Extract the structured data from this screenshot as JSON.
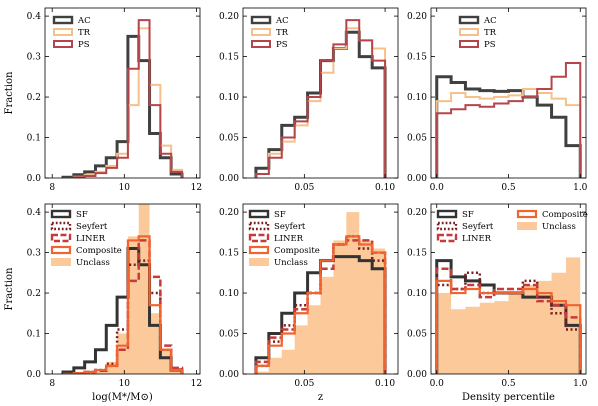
{
  "colors": {
    "AC": "#404040",
    "TR": "#f5c08a",
    "PS": "#b5454b",
    "SF": "#333333",
    "Seyfert": "#7a1f1f",
    "LINER": "#c63a3a",
    "Composite": "#f0642f",
    "Unclass": "#fbc99a"
  },
  "chart_data": [
    {
      "type": "step-histogram",
      "panel": "top-mass",
      "xlabel": "",
      "ylabel": "Fraction",
      "xlim": [
        7.8,
        12.1
      ],
      "ylim": [
        0,
        0.42
      ],
      "xticks": [
        8,
        10,
        12
      ],
      "yticks": [
        0.0,
        0.1,
        0.2,
        0.3,
        0.4
      ],
      "xticklabels": [
        "8",
        "10",
        "12"
      ],
      "yticklabels": [
        "0.0",
        "0.1",
        "0.2",
        "0.3",
        "0.4"
      ],
      "legend": "top-left",
      "series": [
        {
          "name": "AC",
          "key": "AC",
          "style": "solid",
          "width": 3,
          "edges": [
            8.3,
            8.6,
            8.9,
            9.2,
            9.5,
            9.8,
            10.1,
            10.4,
            10.7,
            11.0,
            11.3,
            11.6
          ],
          "values": [
            0.002,
            0.008,
            0.015,
            0.03,
            0.05,
            0.09,
            0.35,
            0.29,
            0.11,
            0.05,
            0.01
          ]
        },
        {
          "name": "TR",
          "key": "TR",
          "style": "solid",
          "width": 2,
          "edges": [
            8.3,
            8.6,
            8.9,
            9.2,
            9.5,
            9.8,
            10.1,
            10.4,
            10.7,
            11.0,
            11.3,
            11.6
          ],
          "values": [
            0.0,
            0.003,
            0.008,
            0.015,
            0.03,
            0.06,
            0.18,
            0.37,
            0.23,
            0.08,
            0.02
          ]
        },
        {
          "name": "PS",
          "key": "PS",
          "style": "solid",
          "width": 2,
          "edges": [
            8.3,
            8.6,
            8.9,
            9.2,
            9.5,
            9.8,
            10.1,
            10.4,
            10.7,
            11.0,
            11.3,
            11.6
          ],
          "values": [
            0.0,
            0.002,
            0.005,
            0.012,
            0.025,
            0.05,
            0.27,
            0.39,
            0.18,
            0.06,
            0.015
          ]
        }
      ]
    },
    {
      "type": "step-histogram",
      "panel": "top-z",
      "xlabel": "",
      "ylabel": "",
      "xlim": [
        0.012,
        0.108
      ],
      "ylim": [
        0,
        0.21
      ],
      "xticks": [
        0.05,
        0.1
      ],
      "yticks": [
        0.0,
        0.05,
        0.1,
        0.15,
        0.2
      ],
      "xticklabels": [
        "0.05",
        "0.10"
      ],
      "yticklabels": [
        "0.00",
        "0.05",
        "0.10",
        "0.15",
        "0.20"
      ],
      "legend": "top-left",
      "series": [
        {
          "name": "AC",
          "key": "AC",
          "style": "solid",
          "width": 3,
          "edges": [
            0.02,
            0.028,
            0.036,
            0.044,
            0.052,
            0.06,
            0.068,
            0.076,
            0.084,
            0.092,
            0.1
          ],
          "values": [
            0.012,
            0.035,
            0.065,
            0.075,
            0.105,
            0.145,
            0.16,
            0.18,
            0.15,
            0.136
          ]
        },
        {
          "name": "TR",
          "key": "TR",
          "style": "solid",
          "width": 2,
          "edges": [
            0.02,
            0.028,
            0.036,
            0.044,
            0.052,
            0.06,
            0.068,
            0.076,
            0.084,
            0.092,
            0.1
          ],
          "values": [
            0.005,
            0.03,
            0.045,
            0.065,
            0.095,
            0.13,
            0.16,
            0.185,
            0.17,
            0.16
          ]
        },
        {
          "name": "PS",
          "key": "PS",
          "style": "solid",
          "width": 2,
          "edges": [
            0.02,
            0.028,
            0.036,
            0.044,
            0.052,
            0.06,
            0.068,
            0.076,
            0.084,
            0.092,
            0.1
          ],
          "values": [
            0.005,
            0.025,
            0.05,
            0.07,
            0.1,
            0.145,
            0.165,
            0.195,
            0.17,
            0.145
          ]
        }
      ]
    },
    {
      "type": "step-histogram",
      "panel": "top-density",
      "xlabel": "",
      "ylabel": "",
      "xlim": [
        -0.04,
        1.04
      ],
      "ylim": [
        0,
        0.21
      ],
      "xticks": [
        0.0,
        0.5,
        1.0
      ],
      "yticks": [
        0.0,
        0.05,
        0.1,
        0.15,
        0.2
      ],
      "xticklabels": [
        "0.0",
        "0.5",
        "1.0"
      ],
      "yticklabels": [
        "0.00",
        "0.05",
        "0.10",
        "0.15",
        "0.20"
      ],
      "legend": "top-center",
      "series": [
        {
          "name": "AC",
          "key": "AC",
          "style": "solid",
          "width": 3,
          "edges": [
            0.0,
            0.1,
            0.2,
            0.3,
            0.4,
            0.5,
            0.6,
            0.7,
            0.8,
            0.9,
            1.0
          ],
          "values": [
            0.125,
            0.118,
            0.11,
            0.108,
            0.107,
            0.108,
            0.1,
            0.09,
            0.075,
            0.04
          ]
        },
        {
          "name": "TR",
          "key": "TR",
          "style": "solid",
          "width": 2,
          "edges": [
            0.0,
            0.1,
            0.2,
            0.3,
            0.4,
            0.5,
            0.6,
            0.7,
            0.8,
            0.9,
            1.0
          ],
          "values": [
            0.095,
            0.105,
            0.1,
            0.098,
            0.1,
            0.102,
            0.11,
            0.105,
            0.098,
            0.09
          ]
        },
        {
          "name": "PS",
          "key": "PS",
          "style": "solid",
          "width": 2,
          "edges": [
            0.0,
            0.1,
            0.2,
            0.3,
            0.4,
            0.5,
            0.6,
            0.7,
            0.8,
            0.9,
            1.0
          ],
          "values": [
            0.08,
            0.085,
            0.09,
            0.088,
            0.092,
            0.095,
            0.1,
            0.11,
            0.125,
            0.142
          ]
        }
      ]
    },
    {
      "type": "step-histogram",
      "panel": "bottom-mass",
      "xlabel": "log(M*/M⊙)",
      "ylabel": "Fraction",
      "xlim": [
        7.8,
        12.1
      ],
      "ylim": [
        0,
        0.42
      ],
      "xticks": [
        8,
        10,
        12
      ],
      "yticks": [
        0.0,
        0.1,
        0.2,
        0.3,
        0.4
      ],
      "xticklabels": [
        "8",
        "10",
        "12"
      ],
      "yticklabels": [
        "0.0",
        "0.1",
        "0.2",
        "0.3",
        "0.4"
      ],
      "legend": "top-left",
      "series": [
        {
          "name": "Unclass",
          "key": "Unclass",
          "style": "fill",
          "width": 0,
          "edges": [
            8.3,
            8.6,
            8.9,
            9.2,
            9.5,
            9.8,
            10.1,
            10.4,
            10.7,
            11.0,
            11.3,
            11.6
          ],
          "values": [
            0.0,
            0.002,
            0.005,
            0.01,
            0.03,
            0.1,
            0.34,
            0.43,
            0.15,
            0.06,
            0.015
          ]
        },
        {
          "name": "SF",
          "key": "SF",
          "style": "solid",
          "width": 3,
          "edges": [
            8.3,
            8.6,
            8.9,
            9.2,
            9.5,
            9.8,
            10.1,
            10.4,
            10.7,
            11.0,
            11.3,
            11.6
          ],
          "values": [
            0.005,
            0.015,
            0.03,
            0.06,
            0.12,
            0.19,
            0.31,
            0.27,
            0.12,
            0.04,
            0.01
          ]
        },
        {
          "name": "Seyfert",
          "key": "Seyfert",
          "style": "dotted",
          "width": 2.5,
          "edges": [
            8.3,
            8.6,
            8.9,
            9.2,
            9.5,
            9.8,
            10.1,
            10.4,
            10.7,
            11.0,
            11.3,
            11.6
          ],
          "values": [
            0.0,
            0.002,
            0.005,
            0.01,
            0.025,
            0.11,
            0.27,
            0.28,
            0.2,
            0.06,
            0.01
          ]
        },
        {
          "name": "LINER",
          "key": "LINER",
          "style": "dashed",
          "width": 2.5,
          "edges": [
            8.3,
            8.6,
            8.9,
            9.2,
            9.5,
            9.8,
            10.1,
            10.4,
            10.7,
            11.0,
            11.3,
            11.6
          ],
          "values": [
            0.0,
            0.002,
            0.005,
            0.008,
            0.02,
            0.06,
            0.23,
            0.33,
            0.24,
            0.07,
            0.015
          ]
        },
        {
          "name": "Composite",
          "key": "Composite",
          "style": "solid",
          "width": 2.2,
          "edges": [
            8.3,
            8.6,
            8.9,
            9.2,
            9.5,
            9.8,
            10.1,
            10.4,
            10.7,
            11.0,
            11.3,
            11.6
          ],
          "values": [
            0.0,
            0.002,
            0.005,
            0.01,
            0.02,
            0.07,
            0.33,
            0.34,
            0.17,
            0.06,
            0.01
          ]
        }
      ]
    },
    {
      "type": "step-histogram",
      "panel": "bottom-z",
      "xlabel": "z",
      "ylabel": "",
      "xlim": [
        0.012,
        0.108
      ],
      "ylim": [
        0,
        0.21
      ],
      "xticks": [
        0.05,
        0.1
      ],
      "yticks": [
        0.0,
        0.05,
        0.1,
        0.15,
        0.2
      ],
      "xticklabels": [
        "0.05",
        "0.10"
      ],
      "yticklabels": [
        "0.00",
        "0.05",
        "0.10",
        "0.15",
        "0.20"
      ],
      "legend": "top-left",
      "series": [
        {
          "name": "Unclass",
          "key": "Unclass",
          "style": "fill",
          "width": 0,
          "edges": [
            0.02,
            0.028,
            0.036,
            0.044,
            0.052,
            0.06,
            0.068,
            0.076,
            0.084,
            0.092,
            0.1
          ],
          "values": [
            0.003,
            0.02,
            0.03,
            0.06,
            0.085,
            0.12,
            0.165,
            0.2,
            0.165,
            0.155
          ]
        },
        {
          "name": "SF",
          "key": "SF",
          "style": "solid",
          "width": 3,
          "edges": [
            0.02,
            0.028,
            0.036,
            0.044,
            0.052,
            0.06,
            0.068,
            0.076,
            0.084,
            0.092,
            0.1
          ],
          "values": [
            0.02,
            0.05,
            0.075,
            0.1,
            0.125,
            0.14,
            0.145,
            0.145,
            0.14,
            0.13
          ]
        },
        {
          "name": "Seyfert",
          "key": "Seyfert",
          "style": "dotted",
          "width": 2.5,
          "edges": [
            0.02,
            0.028,
            0.036,
            0.044,
            0.052,
            0.06,
            0.068,
            0.076,
            0.084,
            0.092,
            0.1
          ],
          "values": [
            0.01,
            0.04,
            0.06,
            0.085,
            0.1,
            0.14,
            0.16,
            0.17,
            0.155,
            0.14
          ]
        },
        {
          "name": "LINER",
          "key": "LINER",
          "style": "dashed",
          "width": 2.5,
          "edges": [
            0.02,
            0.028,
            0.036,
            0.044,
            0.052,
            0.06,
            0.068,
            0.076,
            0.084,
            0.092,
            0.1
          ],
          "values": [
            0.015,
            0.045,
            0.055,
            0.08,
            0.1,
            0.13,
            0.16,
            0.165,
            0.165,
            0.15
          ]
        },
        {
          "name": "Composite",
          "key": "Composite",
          "style": "solid",
          "width": 2.2,
          "edges": [
            0.02,
            0.028,
            0.036,
            0.044,
            0.052,
            0.06,
            0.068,
            0.076,
            0.084,
            0.092,
            0.1
          ],
          "values": [
            0.01,
            0.035,
            0.05,
            0.075,
            0.1,
            0.14,
            0.16,
            0.17,
            0.16,
            0.15
          ]
        }
      ]
    },
    {
      "type": "step-histogram",
      "panel": "bottom-density",
      "xlabel": "Density percentile",
      "ylabel": "",
      "xlim": [
        -0.04,
        1.04
      ],
      "ylim": [
        0,
        0.21
      ],
      "xticks": [
        0.0,
        0.5,
        1.0
      ],
      "yticks": [
        0.0,
        0.05,
        0.1,
        0.15,
        0.2
      ],
      "xticklabels": [
        "0.0",
        "0.5",
        "1.0"
      ],
      "yticklabels": [
        "0.00",
        "0.05",
        "0.10",
        "0.15",
        "0.20"
      ],
      "legend": "top",
      "series": [
        {
          "name": "Unclass",
          "key": "Unclass",
          "style": "fill",
          "width": 0,
          "edges": [
            0.0,
            0.1,
            0.2,
            0.3,
            0.4,
            0.5,
            0.6,
            0.7,
            0.8,
            0.9,
            1.0
          ],
          "values": [
            0.1,
            0.08,
            0.083,
            0.088,
            0.09,
            0.1,
            0.11,
            0.115,
            0.125,
            0.144
          ]
        },
        {
          "name": "SF",
          "key": "SF",
          "style": "solid",
          "width": 3,
          "edges": [
            0.0,
            0.1,
            0.2,
            0.3,
            0.4,
            0.5,
            0.6,
            0.7,
            0.8,
            0.9,
            1.0
          ],
          "values": [
            0.14,
            0.12,
            0.115,
            0.11,
            0.1,
            0.1,
            0.095,
            0.095,
            0.085,
            0.06
          ]
        },
        {
          "name": "Seyfert",
          "key": "Seyfert",
          "style": "dotted",
          "width": 2.5,
          "edges": [
            0.0,
            0.1,
            0.2,
            0.3,
            0.4,
            0.5,
            0.6,
            0.7,
            0.8,
            0.9,
            1.0
          ],
          "values": [
            0.11,
            0.105,
            0.125,
            0.1,
            0.1,
            0.1,
            0.115,
            0.095,
            0.075,
            0.055
          ]
        },
        {
          "name": "LINER",
          "key": "LINER",
          "style": "dashed",
          "width": 2.5,
          "edges": [
            0.0,
            0.1,
            0.2,
            0.3,
            0.4,
            0.5,
            0.6,
            0.7,
            0.8,
            0.9,
            1.0
          ],
          "values": [
            0.13,
            0.105,
            0.11,
            0.095,
            0.105,
            0.105,
            0.11,
            0.09,
            0.085,
            0.07
          ]
        },
        {
          "name": "Composite",
          "key": "Composite",
          "style": "solid",
          "width": 2.2,
          "edges": [
            0.0,
            0.1,
            0.2,
            0.3,
            0.4,
            0.5,
            0.6,
            0.7,
            0.8,
            0.9,
            1.0
          ],
          "values": [
            0.115,
            0.1,
            0.105,
            0.1,
            0.1,
            0.1,
            0.105,
            0.1,
            0.09,
            0.085
          ]
        }
      ]
    }
  ]
}
